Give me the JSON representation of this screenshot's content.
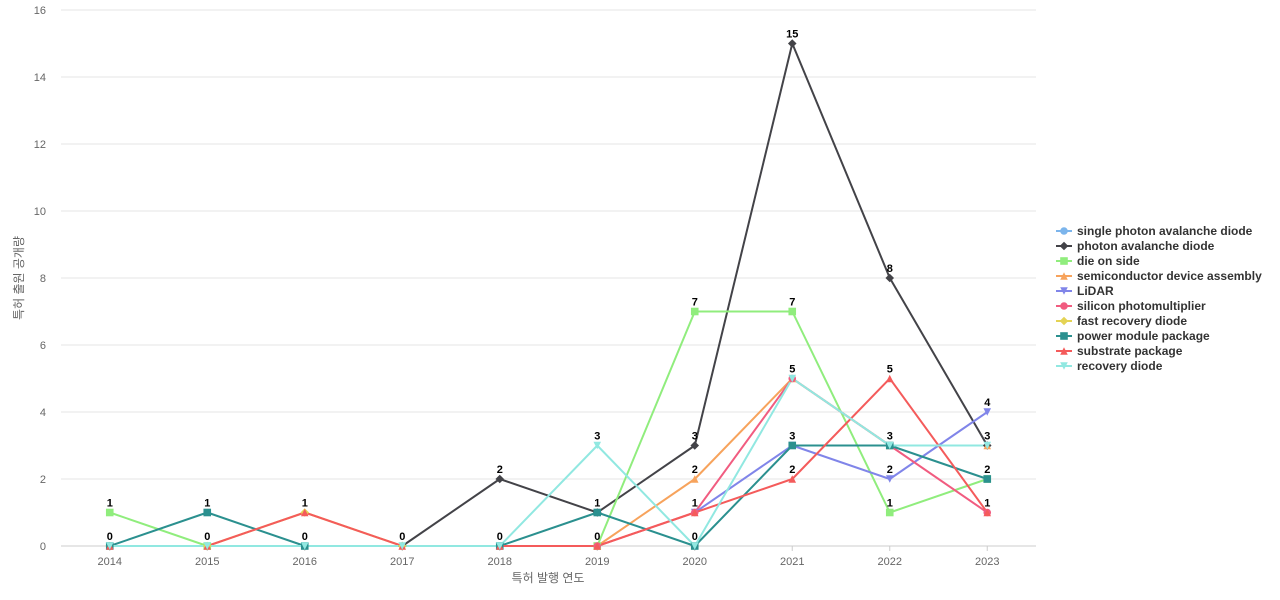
{
  "chart_data": {
    "type": "line",
    "title": "",
    "xlabel": "특허 발행 연도",
    "ylabel": "특허 출원 공개량",
    "ylim": [
      0,
      16
    ],
    "yticks": [
      0,
      2,
      4,
      6,
      8,
      10,
      12,
      14,
      16
    ],
    "grid": true,
    "legend_position": "right",
    "categories": [
      "2014",
      "2015",
      "2016",
      "2017",
      "2018",
      "2019",
      "2020",
      "2021",
      "2022",
      "2023"
    ],
    "series": [
      {
        "name": "single photon avalanche diode",
        "color": "#7cb5ec",
        "marker": "circle",
        "values": [
          null,
          null,
          null,
          null,
          null,
          null,
          null,
          null,
          null,
          null
        ]
      },
      {
        "name": "photon avalanche diode",
        "color": "#434348",
        "marker": "diamond",
        "values": [
          null,
          null,
          null,
          0,
          2,
          1,
          3,
          15,
          8,
          3
        ]
      },
      {
        "name": "die on side",
        "color": "#90ed7d",
        "marker": "square",
        "values": [
          1,
          0,
          null,
          null,
          null,
          0,
          7,
          7,
          1,
          2
        ]
      },
      {
        "name": "semiconductor device assembly",
        "color": "#f7a35c",
        "marker": "triangle",
        "values": [
          null,
          null,
          null,
          null,
          null,
          0,
          2,
          5,
          3,
          3
        ]
      },
      {
        "name": "LiDAR",
        "color": "#8085e9",
        "marker": "triangle-down",
        "values": [
          null,
          null,
          null,
          null,
          null,
          null,
          1,
          3,
          2,
          4
        ]
      },
      {
        "name": "silicon photomultiplier",
        "color": "#f15c80",
        "marker": "circle",
        "values": [
          null,
          null,
          null,
          null,
          null,
          0,
          1,
          5,
          3,
          1
        ]
      },
      {
        "name": "fast recovery diode",
        "color": "#e4d354",
        "marker": "diamond",
        "values": [
          0,
          0,
          1,
          0,
          null,
          null,
          null,
          null,
          null,
          null
        ]
      },
      {
        "name": "power module package",
        "color": "#2b908f",
        "marker": "square",
        "values": [
          0,
          1,
          0,
          null,
          0,
          1,
          0,
          3,
          3,
          2
        ]
      },
      {
        "name": "substrate package",
        "color": "#f45b5b",
        "marker": "triangle",
        "values": [
          0,
          0,
          1,
          0,
          0,
          0,
          1,
          2,
          5,
          1
        ]
      },
      {
        "name": "recovery diode",
        "color": "#91e8e1",
        "marker": "triangle-down",
        "values": [
          0,
          0,
          0,
          0,
          0,
          3,
          0,
          5,
          3,
          3
        ]
      }
    ],
    "data_labels": [
      {
        "category": "2014",
        "labels": [
          {
            "text": "1",
            "value": 1
          },
          {
            "text": "0",
            "value": 0
          }
        ]
      },
      {
        "category": "2015",
        "labels": [
          {
            "text": "1",
            "value": 1
          },
          {
            "text": "0",
            "value": 0
          }
        ]
      },
      {
        "category": "2016",
        "labels": [
          {
            "text": "1",
            "value": 1
          },
          {
            "text": "0",
            "value": 0
          }
        ]
      },
      {
        "category": "2017",
        "labels": [
          {
            "text": "0",
            "value": 0
          }
        ]
      },
      {
        "category": "2018",
        "labels": [
          {
            "text": "2",
            "value": 2
          },
          {
            "text": "0",
            "value": 0
          }
        ]
      },
      {
        "category": "2019",
        "labels": [
          {
            "text": "3",
            "value": 3
          },
          {
            "text": "1",
            "value": 1
          },
          {
            "text": "0",
            "value": 0
          }
        ]
      },
      {
        "category": "2020",
        "labels": [
          {
            "text": "7",
            "value": 7
          },
          {
            "text": "3",
            "value": 3
          },
          {
            "text": "2",
            "value": 2
          },
          {
            "text": "1",
            "value": 1
          },
          {
            "text": "0",
            "value": 0
          }
        ]
      },
      {
        "category": "2021",
        "labels": [
          {
            "text": "15",
            "value": 15
          },
          {
            "text": "7",
            "value": 7
          },
          {
            "text": "5",
            "value": 5
          },
          {
            "text": "3",
            "value": 3
          },
          {
            "text": "2",
            "value": 2
          }
        ]
      },
      {
        "category": "2022",
        "labels": [
          {
            "text": "8",
            "value": 8
          },
          {
            "text": "5",
            "value": 5
          },
          {
            "text": "3",
            "value": 3
          },
          {
            "text": "2",
            "value": 2
          },
          {
            "text": "1",
            "value": 1
          }
        ]
      },
      {
        "category": "2023",
        "labels": [
          {
            "text": "4",
            "value": 4
          },
          {
            "text": "3",
            "value": 3
          },
          {
            "text": "2",
            "value": 2
          },
          {
            "text": "1",
            "value": 1
          }
        ]
      }
    ]
  }
}
